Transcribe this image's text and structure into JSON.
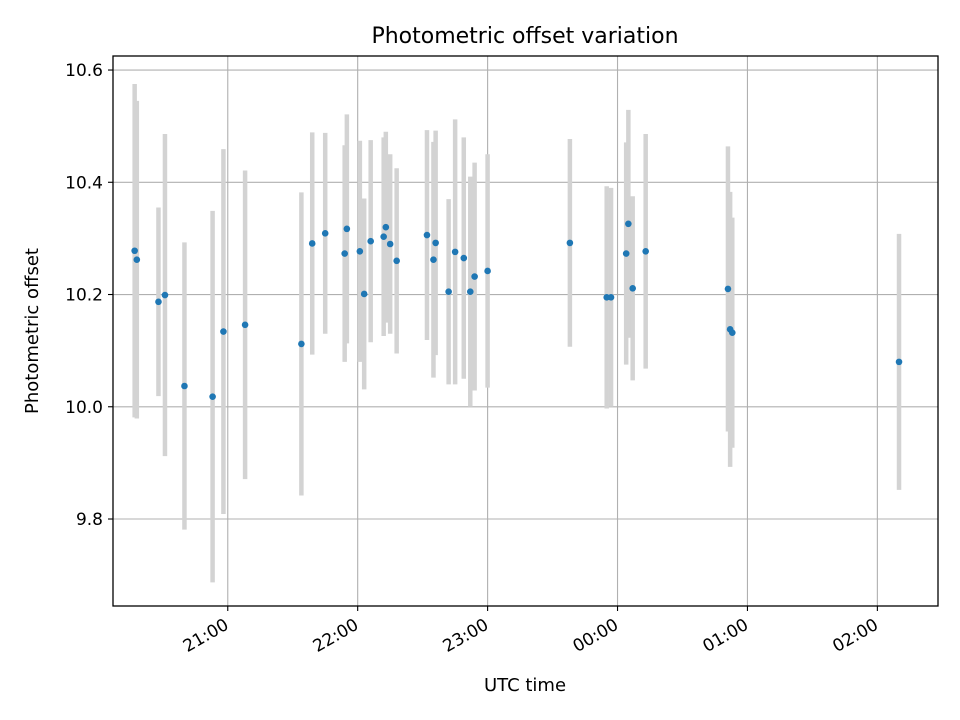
{
  "chart_data": {
    "type": "scatter",
    "title": "Photometric offset variation",
    "xlabel": "UTC time",
    "ylabel": "Photometric offset",
    "x_tick_labels": [
      "21:00",
      "22:00",
      "23:00",
      "00:00",
      "01:00",
      "02:00"
    ],
    "y_ticks": [
      9.8,
      10.0,
      10.2,
      10.4,
      10.6
    ],
    "y_tick_labels": [
      "9.8",
      "10.0",
      "10.2",
      "10.4",
      "10.6"
    ],
    "xlim": [
      "20:07",
      "02:28"
    ],
    "ylim": [
      9.645,
      10.625
    ],
    "grid": true,
    "colors": {
      "point": "#1f77b4",
      "errorbar": "#d3d3d3",
      "grid": "#b0b0b0"
    },
    "points": [
      {
        "t": "20:17",
        "y": 10.278,
        "err": 0.297
      },
      {
        "t": "20:18",
        "y": 10.262,
        "err": 0.283
      },
      {
        "t": "20:28",
        "y": 10.187,
        "err": 0.168
      },
      {
        "t": "20:31",
        "y": 10.199,
        "err": 0.287
      },
      {
        "t": "20:40",
        "y": 10.037,
        "err": 0.256
      },
      {
        "t": "20:53",
        "y": 10.018,
        "err": 0.331
      },
      {
        "t": "20:58",
        "y": 10.134,
        "err": 0.325
      },
      {
        "t": "21:08",
        "y": 10.146,
        "err": 0.275
      },
      {
        "t": "21:34",
        "y": 10.112,
        "err": 0.27
      },
      {
        "t": "21:39",
        "y": 10.291,
        "err": 0.198
      },
      {
        "t": "21:45",
        "y": 10.309,
        "err": 0.179
      },
      {
        "t": "21:54",
        "y": 10.273,
        "err": 0.193
      },
      {
        "t": "21:55",
        "y": 10.317,
        "err": 0.204
      },
      {
        "t": "22:01",
        "y": 10.277,
        "err": 0.197
      },
      {
        "t": "22:03",
        "y": 10.201,
        "err": 0.17
      },
      {
        "t": "22:06",
        "y": 10.295,
        "err": 0.18
      },
      {
        "t": "22:12",
        "y": 10.303,
        "err": 0.177
      },
      {
        "t": "22:13",
        "y": 10.32,
        "err": 0.17
      },
      {
        "t": "22:15",
        "y": 10.29,
        "err": 0.16
      },
      {
        "t": "22:18",
        "y": 10.26,
        "err": 0.165
      },
      {
        "t": "22:32",
        "y": 10.306,
        "err": 0.187
      },
      {
        "t": "22:35",
        "y": 10.262,
        "err": 0.21
      },
      {
        "t": "22:36",
        "y": 10.292,
        "err": 0.2
      },
      {
        "t": "22:42",
        "y": 10.205,
        "err": 0.165
      },
      {
        "t": "22:45",
        "y": 10.276,
        "err": 0.236
      },
      {
        "t": "22:49",
        "y": 10.265,
        "err": 0.215
      },
      {
        "t": "22:52",
        "y": 10.205,
        "err": 0.205
      },
      {
        "t": "22:54",
        "y": 10.232,
        "err": 0.203
      },
      {
        "t": "23:00",
        "y": 10.242,
        "err": 0.208
      },
      {
        "t": "23:38",
        "y": 10.292,
        "err": 0.185
      },
      {
        "t": "23:55",
        "y": 10.195,
        "err": 0.198
      },
      {
        "t": "23:57",
        "y": 10.195,
        "err": 0.195
      },
      {
        "t": "00:04",
        "y": 10.273,
        "err": 0.198
      },
      {
        "t": "00:05",
        "y": 10.326,
        "err": 0.203
      },
      {
        "t": "00:07",
        "y": 10.211,
        "err": 0.164
      },
      {
        "t": "00:13",
        "y": 10.277,
        "err": 0.209
      },
      {
        "t": "00:51",
        "y": 10.21,
        "err": 0.254
      },
      {
        "t": "00:52",
        "y": 10.138,
        "err": 0.245
      },
      {
        "t": "00:53",
        "y": 10.132,
        "err": 0.205
      },
      {
        "t": "02:10",
        "y": 10.08,
        "err": 0.228
      }
    ]
  }
}
